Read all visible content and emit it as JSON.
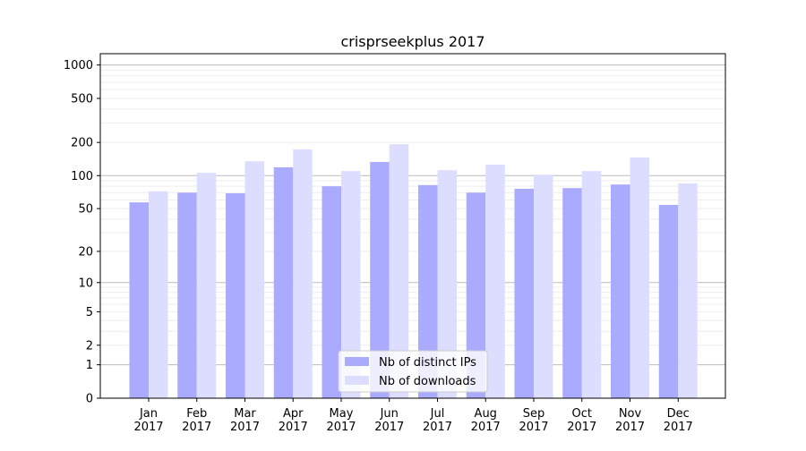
{
  "chart_data": {
    "type": "bar",
    "title": "crisprseekplus 2017",
    "xlabel": "",
    "ylabel": "",
    "yscale": "log(1+x)",
    "ylim": [
      0,
      1300
    ],
    "yticks": [
      0,
      1,
      2,
      5,
      10,
      20,
      50,
      100,
      200,
      500,
      1000
    ],
    "grid": true,
    "legend_position": "bottom-center",
    "categories": [
      "Jan\n2017",
      "Feb\n2017",
      "Mar\n2017",
      "Apr\n2017",
      "May\n2017",
      "Jun\n2017",
      "Jul\n2017",
      "Aug\n2017",
      "Sep\n2017",
      "Oct\n2017",
      "Nov\n2017",
      "Dec\n2017"
    ],
    "series": [
      {
        "name": "Nb of distinct IPs",
        "color": "#aaaaff",
        "values": [
          57,
          70,
          69,
          119,
          80,
          133,
          82,
          70,
          76,
          77,
          83,
          54
        ]
      },
      {
        "name": "Nb of downloads",
        "color": "#ddddff",
        "values": [
          72,
          106,
          135,
          173,
          110,
          193,
          112,
          126,
          102,
          110,
          146,
          85
        ]
      }
    ]
  }
}
